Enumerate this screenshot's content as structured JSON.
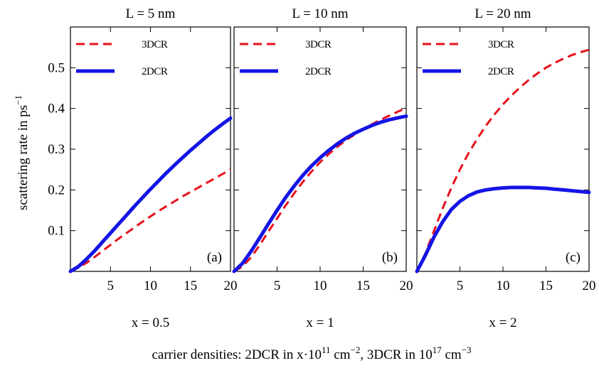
{
  "figure": {
    "ylabel": "scattering rate in ps",
    "ylabel_sup": "−1",
    "xlabel_parts": [
      "carrier densities: 2DCR in x·10",
      "11",
      " cm",
      "−2",
      ", 3DCR in 10",
      "17",
      " cm",
      "−3"
    ]
  },
  "colors": {
    "3DCR": "#e8111b",
    "2DCR": "#1414e6"
  },
  "chart_data": [
    {
      "type": "line",
      "title": "L = 5 nm",
      "panel_label": "(a)",
      "sublabel": "x = 0.5",
      "xlim": [
        0,
        20
      ],
      "ylim": [
        0,
        0.6
      ],
      "xticks": [
        5,
        10,
        15,
        20
      ],
      "yticks": [
        0.1,
        0.2,
        0.3,
        0.4,
        0.5
      ],
      "grid": false,
      "legend_position": "top-left",
      "series": [
        {
          "name": "3DCR",
          "style": "dashed",
          "x": [
            0,
            1,
            2,
            3,
            4,
            5,
            6,
            7,
            8,
            9,
            10,
            11,
            12,
            13,
            14,
            15,
            16,
            17,
            18,
            19,
            20
          ],
          "y": [
            0,
            0.009,
            0.021,
            0.035,
            0.05,
            0.065,
            0.08,
            0.094,
            0.108,
            0.122,
            0.135,
            0.148,
            0.16,
            0.172,
            0.184,
            0.195,
            0.206,
            0.217,
            0.228,
            0.239,
            0.25
          ]
        },
        {
          "name": "2DCR",
          "style": "solid",
          "x": [
            0,
            1,
            2,
            3,
            4,
            5,
            6,
            7,
            8,
            9,
            10,
            11,
            12,
            13,
            14,
            15,
            16,
            17,
            18,
            19,
            20
          ],
          "y": [
            0,
            0.012,
            0.03,
            0.05,
            0.072,
            0.094,
            0.116,
            0.138,
            0.16,
            0.181,
            0.202,
            0.222,
            0.242,
            0.261,
            0.279,
            0.297,
            0.314,
            0.331,
            0.347,
            0.362,
            0.376
          ]
        }
      ]
    },
    {
      "type": "line",
      "title": "L = 10 nm",
      "panel_label": "(b)",
      "sublabel": "x = 1",
      "xlim": [
        0,
        20
      ],
      "ylim": [
        0,
        0.6
      ],
      "xticks": [
        5,
        10,
        15,
        20
      ],
      "yticks": [
        0.1,
        0.2,
        0.3,
        0.4,
        0.5
      ],
      "grid": false,
      "legend_position": "top-left",
      "series": [
        {
          "name": "3DCR",
          "style": "dashed",
          "x": [
            0,
            1,
            2,
            3,
            4,
            5,
            6,
            7,
            8,
            9,
            10,
            11,
            12,
            13,
            14,
            15,
            16,
            17,
            18,
            19,
            20
          ],
          "y": [
            0,
            0.012,
            0.035,
            0.065,
            0.098,
            0.13,
            0.162,
            0.192,
            0.22,
            0.245,
            0.268,
            0.288,
            0.306,
            0.322,
            0.336,
            0.349,
            0.361,
            0.372,
            0.382,
            0.392,
            0.401
          ]
        },
        {
          "name": "2DCR",
          "style": "solid",
          "x": [
            0,
            1,
            2,
            3,
            4,
            5,
            6,
            7,
            8,
            9,
            10,
            11,
            12,
            13,
            14,
            15,
            16,
            17,
            18,
            19,
            20
          ],
          "y": [
            0,
            0.02,
            0.05,
            0.083,
            0.117,
            0.15,
            0.182,
            0.21,
            0.236,
            0.259,
            0.279,
            0.297,
            0.313,
            0.327,
            0.339,
            0.349,
            0.358,
            0.366,
            0.372,
            0.377,
            0.381
          ]
        }
      ]
    },
    {
      "type": "line",
      "title": "L = 20 nm",
      "panel_label": "(c)",
      "sublabel": "x = 2",
      "xlim": [
        0,
        20
      ],
      "ylim": [
        0,
        0.6
      ],
      "xticks": [
        5,
        10,
        15,
        20
      ],
      "yticks": [
        0.1,
        0.2,
        0.3,
        0.4,
        0.5
      ],
      "grid": false,
      "legend_position": "top-left",
      "series": [
        {
          "name": "3DCR",
          "style": "dashed",
          "x": [
            0,
            1,
            2,
            3,
            4,
            5,
            6,
            7,
            8,
            9,
            10,
            11,
            12,
            13,
            14,
            15,
            16,
            17,
            18,
            19,
            20
          ],
          "y": [
            0,
            0.045,
            0.1,
            0.155,
            0.205,
            0.25,
            0.29,
            0.325,
            0.357,
            0.385,
            0.41,
            0.432,
            0.452,
            0.47,
            0.486,
            0.5,
            0.512,
            0.522,
            0.531,
            0.538,
            0.544
          ]
        },
        {
          "name": "2DCR",
          "style": "solid",
          "x": [
            0,
            1,
            2,
            3,
            4,
            5,
            6,
            7,
            8,
            9,
            10,
            11,
            12,
            13,
            14,
            15,
            16,
            17,
            18,
            19,
            20
          ],
          "y": [
            0,
            0.04,
            0.085,
            0.122,
            0.152,
            0.172,
            0.186,
            0.195,
            0.2,
            0.203,
            0.205,
            0.206,
            0.206,
            0.206,
            0.205,
            0.204,
            0.202,
            0.2,
            0.198,
            0.196,
            0.194
          ]
        }
      ]
    }
  ]
}
